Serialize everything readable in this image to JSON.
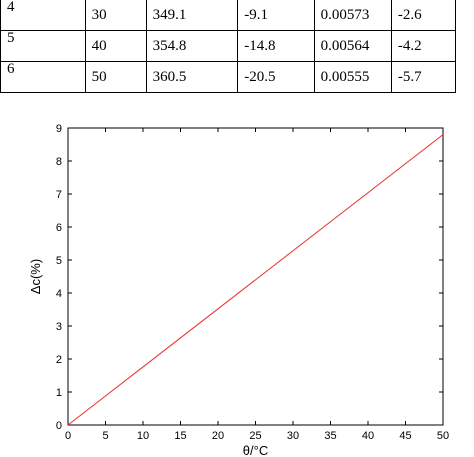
{
  "table": {
    "rows": [
      [
        "4",
        "30",
        "349.1",
        "-9.1",
        "0.00573",
        "-2.6"
      ],
      [
        "5",
        "40",
        "354.8",
        "-14.8",
        "0.00564",
        "-4.2"
      ],
      [
        "6",
        "50",
        "360.5",
        "-20.5",
        "0.00555",
        "-5.7"
      ]
    ]
  },
  "chart_data": {
    "type": "line",
    "title": "",
    "xlabel": "θ/°C",
    "ylabel": "Δc(%)",
    "xlim": [
      0,
      50
    ],
    "ylim": [
      0,
      9
    ],
    "xticks": [
      "0",
      "5",
      "10",
      "15",
      "20",
      "25",
      "30",
      "35",
      "40",
      "45",
      "50"
    ],
    "yticks": [
      "0",
      "1",
      "2",
      "3",
      "4",
      "5",
      "6",
      "7",
      "8",
      "9"
    ],
    "grid": false,
    "series": [
      {
        "color": "#e8322e",
        "x": [
          0,
          50
        ],
        "y": [
          0,
          8.8
        ]
      }
    ]
  }
}
